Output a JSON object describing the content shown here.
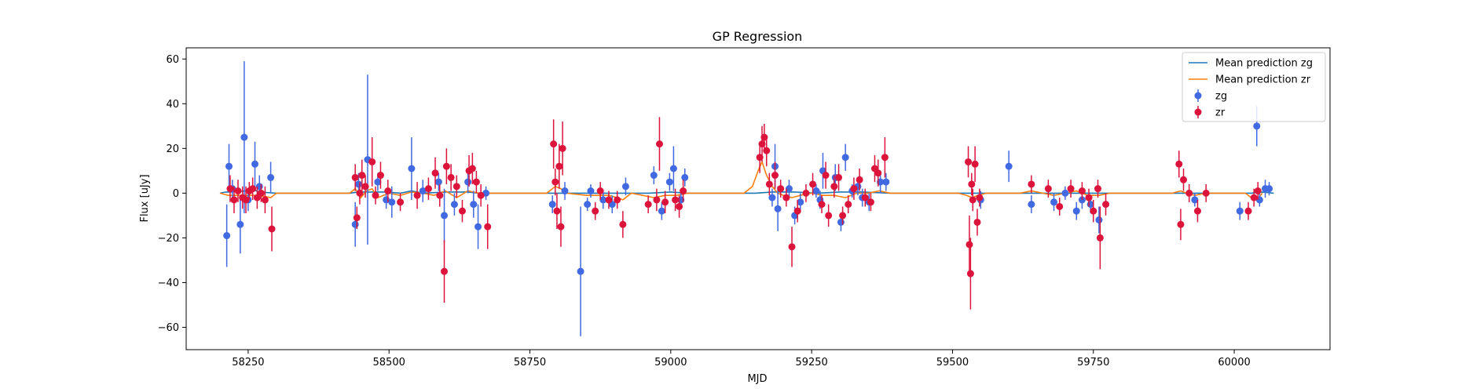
{
  "chart_data": {
    "type": "scatter",
    "title": "GP Regression",
    "xlabel": "MJD",
    "ylabel": "Flux [uJy]",
    "xlim": [
      58140,
      60170
    ],
    "ylim": [
      -70,
      65
    ],
    "xticks": [
      58250,
      58500,
      58750,
      59000,
      59250,
      59500,
      59750,
      60000
    ],
    "yticks": [
      -60,
      -40,
      -20,
      0,
      20,
      40,
      60
    ],
    "grid": false,
    "legend_position": "top-right",
    "legend": [
      {
        "label": "Mean prediction zg",
        "kind": "line",
        "color": "#1f77b4"
      },
      {
        "label": "Mean prediction zr",
        "kind": "line",
        "color": "#ff7f0e"
      },
      {
        "label": "zg",
        "kind": "errorbar",
        "color": "#4169e1"
      },
      {
        "label": "zr",
        "kind": "errorbar",
        "color": "#dc143c"
      }
    ],
    "series": [
      {
        "name": "zg",
        "color": "#4169e1",
        "points": [
          [
            58212,
            -19,
            14
          ],
          [
            58216,
            12,
            10
          ],
          [
            58222,
            2,
            4
          ],
          [
            58236,
            -14,
            13
          ],
          [
            58243,
            25,
            34
          ],
          [
            58250,
            -3,
            5
          ],
          [
            58262,
            13,
            10
          ],
          [
            58270,
            3,
            5
          ],
          [
            58290,
            7,
            7
          ],
          [
            58440,
            -14,
            10
          ],
          [
            58446,
            4,
            5
          ],
          [
            58462,
            15,
            38
          ],
          [
            58480,
            5,
            4
          ],
          [
            58495,
            -3,
            4
          ],
          [
            58505,
            -4,
            7
          ],
          [
            58540,
            11,
            14
          ],
          [
            58560,
            1,
            5
          ],
          [
            58588,
            5,
            4
          ],
          [
            58598,
            -10,
            12
          ],
          [
            58616,
            -5,
            5
          ],
          [
            58640,
            5,
            5
          ],
          [
            58650,
            -5,
            6
          ],
          [
            58658,
            -15,
            10
          ],
          [
            58672,
            0,
            3
          ],
          [
            58790,
            -5,
            4
          ],
          [
            58812,
            1,
            4
          ],
          [
            58840,
            -35,
            29
          ],
          [
            58852,
            -5,
            3
          ],
          [
            58858,
            1,
            3
          ],
          [
            58880,
            -3,
            4
          ],
          [
            58896,
            -5,
            4
          ],
          [
            58920,
            3,
            4
          ],
          [
            58970,
            8,
            4
          ],
          [
            58984,
            -8,
            4
          ],
          [
            58998,
            5,
            4
          ],
          [
            59005,
            11,
            10
          ],
          [
            59018,
            -3,
            4
          ],
          [
            59025,
            7,
            4
          ],
          [
            59180,
            -2,
            4
          ],
          [
            59185,
            12,
            10
          ],
          [
            59190,
            -7,
            10
          ],
          [
            59210,
            2,
            4
          ],
          [
            59220,
            -10,
            4
          ],
          [
            59230,
            -4,
            4
          ],
          [
            59258,
            1,
            3
          ],
          [
            59265,
            -3,
            4
          ],
          [
            59270,
            10,
            8
          ],
          [
            59292,
            7,
            6
          ],
          [
            59302,
            -13,
            4
          ],
          [
            59310,
            16,
            6
          ],
          [
            59322,
            1,
            3
          ],
          [
            59332,
            3,
            4
          ],
          [
            59340,
            -2,
            4
          ],
          [
            59352,
            -4,
            4
          ],
          [
            59372,
            5,
            5
          ],
          [
            59382,
            5,
            4
          ],
          [
            59550,
            -3,
            4
          ],
          [
            59600,
            12,
            7
          ],
          [
            59640,
            -5,
            4
          ],
          [
            59680,
            -4,
            4
          ],
          [
            59700,
            0,
            3
          ],
          [
            59720,
            -8,
            4
          ],
          [
            59730,
            -3,
            4
          ],
          [
            59745,
            -5,
            4
          ],
          [
            59760,
            -12,
            6
          ],
          [
            59930,
            -3,
            3
          ],
          [
            60010,
            -8,
            4
          ],
          [
            60040,
            30,
            9
          ],
          [
            60045,
            -3,
            3
          ],
          [
            60055,
            2,
            4
          ],
          [
            60062,
            2,
            3
          ]
        ]
      },
      {
        "name": "zr",
        "color": "#dc143c",
        "points": [
          [
            58218,
            2,
            6
          ],
          [
            58225,
            -3,
            6
          ],
          [
            58232,
            1,
            5
          ],
          [
            58240,
            -2,
            5
          ],
          [
            58246,
            -3,
            6
          ],
          [
            58252,
            1,
            4
          ],
          [
            58258,
            2,
            5
          ],
          [
            58266,
            -2,
            5
          ],
          [
            58273,
            0,
            4
          ],
          [
            58280,
            -3,
            6
          ],
          [
            58292,
            -16,
            10
          ],
          [
            58440,
            7,
            6
          ],
          [
            58443,
            -11,
            5
          ],
          [
            58448,
            0,
            5
          ],
          [
            58452,
            8,
            7
          ],
          [
            58458,
            3,
            5
          ],
          [
            58470,
            14,
            11
          ],
          [
            58476,
            -1,
            4
          ],
          [
            58485,
            8,
            6
          ],
          [
            58498,
            1,
            5
          ],
          [
            58520,
            -4,
            4
          ],
          [
            58550,
            -1,
            6
          ],
          [
            58570,
            2,
            5
          ],
          [
            58582,
            9,
            7
          ],
          [
            58590,
            -1,
            5
          ],
          [
            58598,
            -35,
            14
          ],
          [
            58602,
            12,
            8
          ],
          [
            58610,
            7,
            6
          ],
          [
            58620,
            3,
            5
          ],
          [
            58630,
            -8,
            5
          ],
          [
            58642,
            10,
            7
          ],
          [
            58648,
            11,
            7
          ],
          [
            58655,
            5,
            5
          ],
          [
            58663,
            -1,
            5
          ],
          [
            58675,
            -15,
            10
          ],
          [
            58792,
            22,
            11
          ],
          [
            58795,
            5,
            6
          ],
          [
            58798,
            -8,
            8
          ],
          [
            58802,
            12,
            10
          ],
          [
            58805,
            -15,
            9
          ],
          [
            58808,
            20,
            12
          ],
          [
            58866,
            -8,
            4
          ],
          [
            58875,
            1,
            4
          ],
          [
            58890,
            -3,
            4
          ],
          [
            58905,
            -3,
            4
          ],
          [
            58915,
            -14,
            6
          ],
          [
            58960,
            -5,
            4
          ],
          [
            58975,
            -3,
            5
          ],
          [
            58980,
            22,
            12
          ],
          [
            58990,
            -4,
            5
          ],
          [
            59008,
            -3,
            5
          ],
          [
            59015,
            -6,
            5
          ],
          [
            59022,
            1,
            5
          ],
          [
            59158,
            16,
            7
          ],
          [
            59162,
            22,
            8
          ],
          [
            59166,
            25,
            6
          ],
          [
            59170,
            19,
            7
          ],
          [
            59175,
            4,
            5
          ],
          [
            59185,
            8,
            6
          ],
          [
            59195,
            2,
            4
          ],
          [
            59205,
            -2,
            4
          ],
          [
            59215,
            -24,
            9
          ],
          [
            59225,
            -8,
            5
          ],
          [
            59240,
            0,
            4
          ],
          [
            59252,
            4,
            5
          ],
          [
            59268,
            -5,
            4
          ],
          [
            59275,
            8,
            6
          ],
          [
            59280,
            -10,
            5
          ],
          [
            59290,
            3,
            5
          ],
          [
            59298,
            7,
            6
          ],
          [
            59305,
            -10,
            4
          ],
          [
            59315,
            -5,
            4
          ],
          [
            59325,
            2,
            5
          ],
          [
            59335,
            6,
            5
          ],
          [
            59345,
            -2,
            4
          ],
          [
            59355,
            -4,
            4
          ],
          [
            59362,
            11,
            6
          ],
          [
            59368,
            9,
            6
          ],
          [
            59380,
            16,
            9
          ],
          [
            59528,
            14,
            7
          ],
          [
            59530,
            -23,
            13
          ],
          [
            59532,
            -36,
            16
          ],
          [
            59534,
            4,
            5
          ],
          [
            59536,
            -3,
            5
          ],
          [
            59540,
            13,
            8
          ],
          [
            59544,
            -13,
            6
          ],
          [
            59548,
            -2,
            4
          ],
          [
            59640,
            4,
            4
          ],
          [
            59670,
            2,
            4
          ],
          [
            59690,
            -6,
            4
          ],
          [
            59710,
            2,
            4
          ],
          [
            59730,
            1,
            4
          ],
          [
            59742,
            -2,
            4
          ],
          [
            59750,
            -8,
            5
          ],
          [
            59758,
            2,
            4
          ],
          [
            59762,
            -20,
            14
          ],
          [
            59772,
            -5,
            5
          ],
          [
            59902,
            13,
            6
          ],
          [
            59905,
            -14,
            7
          ],
          [
            59910,
            6,
            5
          ],
          [
            59920,
            0,
            4
          ],
          [
            59935,
            -8,
            5
          ],
          [
            59950,
            0,
            4
          ],
          [
            60025,
            -8,
            4
          ],
          [
            60035,
            -2,
            4
          ],
          [
            60042,
            1,
            4
          ]
        ]
      }
    ],
    "lines": [
      {
        "name": "Mean prediction zg",
        "color": "#1f77b4",
        "x": [
          58200,
          58210,
          58220,
          58245,
          58255,
          58270,
          58300,
          58430,
          58445,
          58470,
          58495,
          58520,
          58540,
          58560,
          58600,
          58640,
          58660,
          58680,
          58780,
          58800,
          58830,
          58860,
          58900,
          58960,
          59000,
          59030,
          59150,
          59180,
          59220,
          59260,
          59300,
          59340,
          59390,
          59510,
          59540,
          59580,
          59620,
          59660,
          59700,
          59740,
          59790,
          59890,
          59920,
          59960,
          60000,
          60030,
          60050,
          60070
        ],
        "y": [
          0,
          0.5,
          0.5,
          1,
          2,
          0.5,
          0,
          0,
          0.5,
          0.5,
          0.5,
          0,
          1,
          0,
          0.5,
          0.5,
          0,
          0,
          0,
          0,
          0,
          0,
          0,
          0,
          0.5,
          0,
          0,
          0.5,
          0.5,
          0,
          0.5,
          0.5,
          0,
          0,
          0,
          0,
          0,
          0,
          0,
          0,
          0,
          0,
          0,
          0,
          0,
          0,
          0.5,
          0
        ]
      },
      {
        "name": "Mean prediction zr",
        "color": "#ff7f0e",
        "x": [
          58200,
          58215,
          58230,
          58260,
          58280,
          58290,
          58300,
          58430,
          58440,
          58450,
          58460,
          58470,
          58480,
          58500,
          58520,
          58540,
          58560,
          58580,
          58600,
          58620,
          58640,
          58660,
          58680,
          58780,
          58795,
          58805,
          58815,
          58850,
          58870,
          58890,
          58905,
          58915,
          58930,
          58950,
          58970,
          58990,
          59010,
          59030,
          59130,
          59145,
          59155,
          59162,
          59170,
          59180,
          59190,
          59200,
          59215,
          59230,
          59250,
          59270,
          59290,
          59310,
          59330,
          59350,
          59370,
          59390,
          59510,
          59525,
          59535,
          59545,
          59560,
          59620,
          59640,
          59660,
          59680,
          59700,
          59720,
          59740,
          59760,
          59780,
          59890,
          59905,
          59915,
          59930,
          59950,
          60020,
          60030,
          60040,
          60050
        ],
        "y": [
          0,
          -1,
          -1,
          -1,
          -1.5,
          -2,
          0,
          0,
          2,
          -2,
          1,
          2,
          -2,
          0,
          -1,
          0.5,
          0,
          -1,
          1,
          -2,
          1,
          0,
          0,
          0,
          3,
          2,
          0,
          -1,
          -1,
          -1,
          -2,
          -3,
          0,
          -1,
          -2,
          -1,
          -1,
          0,
          0,
          3,
          10,
          14,
          8,
          3,
          0,
          -1,
          -2,
          -1,
          0,
          -1,
          -1,
          -2,
          0,
          0,
          1,
          0,
          0,
          -1,
          -2,
          -1,
          0,
          0,
          1,
          0,
          -1,
          0,
          1,
          -1,
          -1,
          0,
          0,
          1,
          0,
          -1,
          0,
          0,
          -2,
          -3,
          0
        ]
      }
    ]
  }
}
